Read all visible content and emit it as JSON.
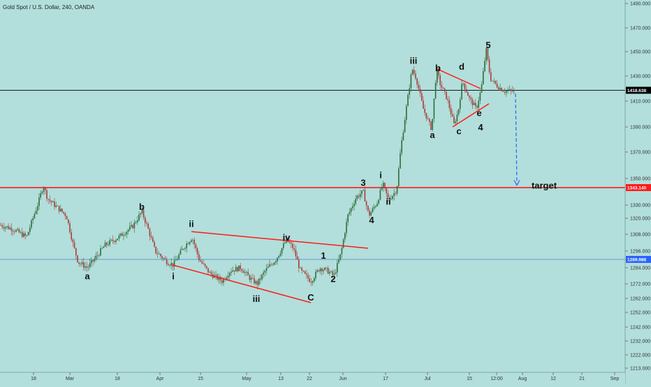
{
  "header": {
    "title": "Gold Spot / U.S. Dollar, 240, OANDA"
  },
  "chart_data": {
    "type": "candlestick",
    "title": "Gold Spot / U.S. Dollar, 240, OANDA",
    "ylim": [
      1208,
      1496
    ],
    "y_ticks": [
      "1490.000",
      "1470.000",
      "1450.000",
      "1430.000",
      "1410.000",
      "1390.000",
      "1370.000",
      "1350.000",
      "1330.000",
      "1320.000",
      "1308.000",
      "1296.000",
      "1284.000",
      "1272.000",
      "1262.000",
      "1252.000",
      "1242.000",
      "1232.000",
      "1222.000",
      "1213.000"
    ],
    "x_ticks": [
      "18",
      "Mar",
      "18",
      "Apr",
      "15",
      "May",
      "13",
      "22",
      "Jun",
      "17",
      "Jul",
      "15",
      "12:00",
      "Aug",
      "12",
      "21",
      "Sep"
    ],
    "price_markers": [
      {
        "value": "1418.638",
        "color": "#000000"
      },
      {
        "value": "1343.140",
        "color": "#ff1a1a"
      },
      {
        "value": "1289.988",
        "color": "#2962ff"
      }
    ],
    "horizontal_lines": [
      {
        "price": 1418.638,
        "color": "#000000"
      },
      {
        "price": 1343.14,
        "color": "#ff1a1a"
      },
      {
        "price": 1289.988,
        "color": "#4a7fd8"
      }
    ],
    "price_path": [
      [
        0,
        1315
      ],
      [
        18,
        1312
      ],
      [
        38,
        1306
      ],
      [
        55,
        1332
      ],
      [
        62,
        1345
      ],
      [
        68,
        1335
      ],
      [
        78,
        1330
      ],
      [
        95,
        1322
      ],
      [
        105,
        1300
      ],
      [
        112,
        1288
      ],
      [
        125,
        1284
      ],
      [
        135,
        1290
      ],
      [
        150,
        1300
      ],
      [
        170,
        1306
      ],
      [
        190,
        1314
      ],
      [
        203,
        1325
      ],
      [
        212,
        1312
      ],
      [
        222,
        1296
      ],
      [
        240,
        1288
      ],
      [
        248,
        1286
      ],
      [
        262,
        1298
      ],
      [
        275,
        1306
      ],
      [
        285,
        1290
      ],
      [
        300,
        1280
      ],
      [
        318,
        1274
      ],
      [
        330,
        1282
      ],
      [
        345,
        1284
      ],
      [
        358,
        1276
      ],
      [
        368,
        1272
      ],
      [
        380,
        1282
      ],
      [
        395,
        1290
      ],
      [
        410,
        1304
      ],
      [
        420,
        1298
      ],
      [
        430,
        1282
      ],
      [
        445,
        1274
      ],
      [
        458,
        1284
      ],
      [
        468,
        1282
      ],
      [
        478,
        1278
      ],
      [
        488,
        1294
      ],
      [
        498,
        1322
      ],
      [
        510,
        1336
      ],
      [
        520,
        1340
      ],
      [
        528,
        1322
      ],
      [
        540,
        1332
      ],
      [
        548,
        1346
      ],
      [
        556,
        1334
      ],
      [
        563,
        1338
      ],
      [
        568,
        1342
      ],
      [
        574,
        1374
      ],
      [
        582,
        1406
      ],
      [
        590,
        1436
      ],
      [
        596,
        1428
      ],
      [
        606,
        1404
      ],
      [
        618,
        1388
      ],
      [
        625,
        1436
      ],
      [
        630,
        1424
      ],
      [
        640,
        1412
      ],
      [
        650,
        1392
      ],
      [
        656,
        1402
      ],
      [
        662,
        1426
      ],
      [
        672,
        1412
      ],
      [
        682,
        1404
      ],
      [
        689,
        1420
      ],
      [
        696,
        1452
      ],
      [
        702,
        1428
      ],
      [
        712,
        1422
      ],
      [
        722,
        1418
      ],
      [
        736,
        1418
      ]
    ],
    "projection": {
      "from": {
        "date_index": 738,
        "price": 1416
      },
      "to": {
        "date_index": 740,
        "price": 1345
      }
    },
    "trendlines": [
      {
        "from": [
          274,
          1310
        ],
        "to": [
          527,
          1298
        ]
      },
      {
        "from": [
          247,
          1286
        ],
        "to": [
          445,
          1259
        ]
      },
      {
        "from": [
          625,
          1436
        ],
        "to": [
          688,
          1420
        ]
      },
      {
        "from": [
          648,
          1390
        ],
        "to": [
          700,
          1408
        ]
      }
    ],
    "wave_labels": [
      {
        "text": "a",
        "price_at": 1278,
        "x_at": 125
      },
      {
        "text": "b",
        "price_at": 1329,
        "x_at": 203
      },
      {
        "text": "ii",
        "price_at": 1316,
        "x_at": 274
      },
      {
        "text": "i",
        "price_at": 1278,
        "x_at": 248
      },
      {
        "text": "iii",
        "price_at": 1262,
        "x_at": 367
      },
      {
        "text": "iv",
        "price_at": 1306,
        "x_at": 410
      },
      {
        "text": "C",
        "price_at": 1263,
        "x_at": 445
      },
      {
        "text": "1",
        "price_at": 1293,
        "x_at": 463
      },
      {
        "text": "2",
        "price_at": 1276,
        "x_at": 477
      },
      {
        "text": "3",
        "price_at": 1347,
        "x_at": 520
      },
      {
        "text": "4",
        "price_at": 1319,
        "x_at": 532
      },
      {
        "text": "i",
        "price_at": 1353,
        "x_at": 545
      },
      {
        "text": "ii",
        "price_at": 1333,
        "x_at": 556
      },
      {
        "text": "iii",
        "price_at": 1443,
        "x_at": 592
      },
      {
        "text": "a",
        "price_at": 1384,
        "x_at": 619
      },
      {
        "text": "b",
        "price_at": 1437,
        "x_at": 627
      },
      {
        "text": "c",
        "price_at": 1387,
        "x_at": 657
      },
      {
        "text": "d",
        "price_at": 1438,
        "x_at": 661
      },
      {
        "text": "e",
        "price_at": 1401,
        "x_at": 686
      },
      {
        "text": "4",
        "price_at": 1390,
        "x_at": 688
      },
      {
        "text": "5",
        "price_at": 1456,
        "x_at": 699
      },
      {
        "text": "target",
        "price_at": 1345,
        "x_at": 779
      }
    ]
  }
}
